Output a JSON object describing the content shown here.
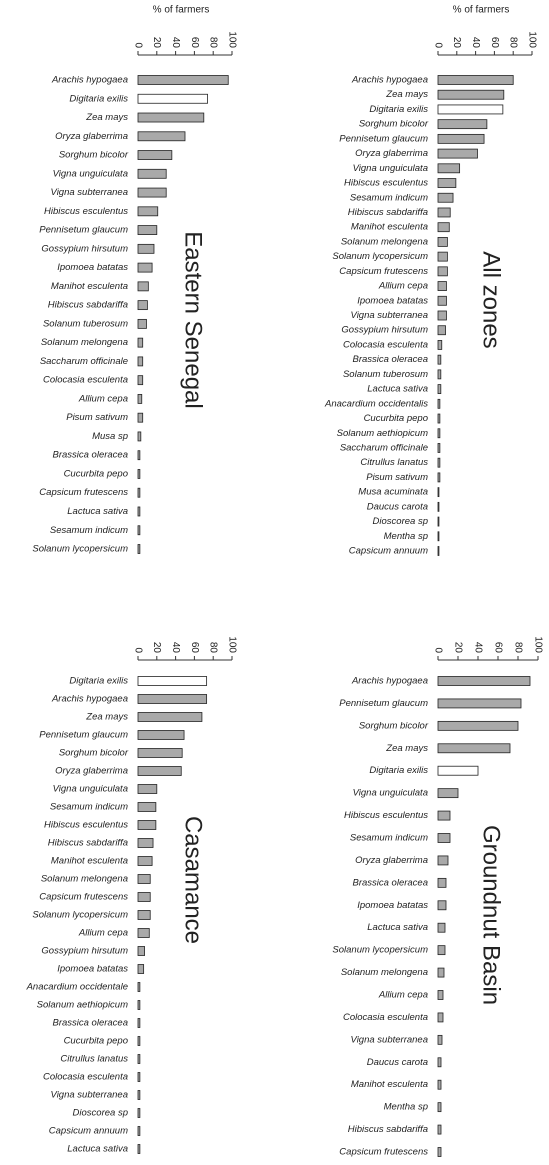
{
  "chart_data": [
    {
      "type": "bar",
      "orientation": "horizontal",
      "title": "Eastern Senegal",
      "xlabel": "% of farmers",
      "categories": [
        "Arachis hypogaea",
        "Digitaria exilis",
        "Zea mays",
        "Oryza glaberrima",
        "Sorghum bicolor",
        "Vigna unguiculata",
        "Vigna subterranea",
        "Hibiscus esculentus",
        "Pennisetum glaucum",
        "Gossypium hirsutum",
        "Ipomoea batatas",
        "Manihot esculenta",
        "Hibiscus sabdariffa",
        "Solanum tuberosum",
        "Solanum melongena",
        "Saccharum officinale",
        "Colocasia esculenta",
        "Allium cepa",
        "Pisum sativum",
        "Musa sp",
        "Brassica oleracea",
        "Cucurbita pepo",
        "Capsicum frutescens",
        "Lactuca sativa",
        "Sesamum indicum",
        "Solanum lycopersicum"
      ],
      "values": [
        96,
        74,
        70,
        50,
        36,
        30,
        30,
        21,
        20,
        17,
        15,
        11,
        10,
        9,
        5,
        5,
        5,
        4,
        5,
        3,
        2,
        2,
        2,
        2,
        2,
        2
      ],
      "colors": [
        "#a9a9a9",
        "#ffffff",
        "#a9a9a9",
        "#a9a9a9",
        "#a9a9a9",
        "#a9a9a9",
        "#a9a9a9",
        "#a9a9a9",
        "#a9a9a9",
        "#a9a9a9",
        "#a9a9a9",
        "#a9a9a9",
        "#a9a9a9",
        "#a9a9a9",
        "#a9a9a9",
        "#a9a9a9",
        "#a9a9a9",
        "#a9a9a9",
        "#a9a9a9",
        "#a9a9a9",
        "#a9a9a9",
        "#a9a9a9",
        "#a9a9a9",
        "#a9a9a9",
        "#a9a9a9",
        "#a9a9a9"
      ],
      "xlim": [
        0,
        100
      ],
      "xticks": [
        0,
        20,
        40,
        60,
        80,
        100
      ]
    },
    {
      "type": "bar",
      "orientation": "horizontal",
      "title": "All zones",
      "xlabel": "% of farmers",
      "categories": [
        "Arachis hypogaea",
        "Zea mays",
        "Digitaria exilis",
        "Sorghum bicolor",
        "Pennisetum glaucum",
        "Oryza glaberrima",
        "Vigna unguiculata",
        "Hibiscus esculentus",
        "Sesamum indicum",
        "Hibiscus sabdariffa",
        "Manihot esculenta",
        "Solanum melongena",
        "Solanum lycopersicum",
        "Capsicum frutescens",
        "Allium cepa",
        "Ipomoea batatas",
        "Vigna subterranea",
        "Gossypium hirsutum",
        "Colocasia esculenta",
        "Brassica oleracea",
        "Solanum tuberosum",
        "Lactuca sativa",
        "Anacardium occidentalis",
        "Cucurbita pepo",
        "Solanum aethiopicum",
        "Saccharum officinale",
        "Citrullus lanatus",
        "Pisum sativum",
        "Musa acuminata",
        "Daucus carota",
        "Dioscorea sp",
        "Mentha sp",
        "Capsicum annuum"
      ],
      "values": [
        80,
        70,
        69,
        52,
        49,
        42,
        23,
        19,
        16,
        13,
        12,
        10,
        10,
        10,
        9,
        9,
        9,
        8,
        4,
        3,
        3,
        3,
        2,
        2,
        2,
        2,
        2,
        2,
        1,
        1,
        1,
        1,
        1
      ],
      "colors": [
        "#a9a9a9",
        "#a9a9a9",
        "#ffffff",
        "#a9a9a9",
        "#a9a9a9",
        "#a9a9a9",
        "#a9a9a9",
        "#a9a9a9",
        "#a9a9a9",
        "#a9a9a9",
        "#a9a9a9",
        "#a9a9a9",
        "#a9a9a9",
        "#a9a9a9",
        "#a9a9a9",
        "#a9a9a9",
        "#a9a9a9",
        "#a9a9a9",
        "#a9a9a9",
        "#a9a9a9",
        "#a9a9a9",
        "#a9a9a9",
        "#a9a9a9",
        "#a9a9a9",
        "#a9a9a9",
        "#a9a9a9",
        "#a9a9a9",
        "#a9a9a9",
        "#a9a9a9",
        "#a9a9a9",
        "#a9a9a9",
        "#a9a9a9",
        "#a9a9a9"
      ],
      "xlim": [
        0,
        100
      ],
      "xticks": [
        0,
        20,
        40,
        60,
        80,
        100
      ]
    },
    {
      "type": "bar",
      "orientation": "horizontal",
      "title": "Casamance",
      "categories": [
        "Digitaria exilis",
        "Arachis hypogaea",
        "Zea mays",
        "Pennisetum glaucum",
        "Sorghum bicolor",
        "Oryza glaberrima",
        "Vigna unguiculata",
        "Sesamum indicum",
        "Hibiscus esculentus",
        "Hibiscus sabdariffa",
        "Manihot esculenta",
        "Solanum melongena",
        "Capsicum frutescens",
        "Solanum lycopersicum",
        "Allium cepa",
        "Gossypium hirsutum",
        "Ipomoea batatas",
        "Anacardium occidentale",
        "Solanum aethiopicum",
        "Brassica oleracea",
        "Cucurbita pepo",
        "Citrullus lanatus",
        "Colocasia esculenta",
        "Vigna subterranea",
        "Dioscorea sp",
        "Capsicum annuum",
        "Lactuca sativa"
      ],
      "values": [
        73,
        73,
        68,
        49,
        47,
        46,
        20,
        19,
        19,
        16,
        15,
        13,
        13,
        13,
        12,
        7,
        6,
        2,
        2,
        2,
        2,
        2,
        2,
        2,
        2,
        2,
        2
      ],
      "colors": [
        "#ffffff",
        "#a9a9a9",
        "#a9a9a9",
        "#a9a9a9",
        "#a9a9a9",
        "#a9a9a9",
        "#a9a9a9",
        "#a9a9a9",
        "#a9a9a9",
        "#a9a9a9",
        "#a9a9a9",
        "#a9a9a9",
        "#a9a9a9",
        "#a9a9a9",
        "#a9a9a9",
        "#a9a9a9",
        "#a9a9a9",
        "#a9a9a9",
        "#a9a9a9",
        "#a9a9a9",
        "#a9a9a9",
        "#a9a9a9",
        "#a9a9a9",
        "#a9a9a9",
        "#a9a9a9",
        "#a9a9a9",
        "#a9a9a9"
      ],
      "xlim": [
        0,
        100
      ],
      "xticks": [
        0,
        20,
        40,
        60,
        80,
        100
      ]
    },
    {
      "type": "bar",
      "orientation": "horizontal",
      "title": "Groundnut Basin",
      "categories": [
        "Arachis hypogaea",
        "Pennisetum glaucum",
        "Sorghum bicolor",
        "Zea mays",
        "Digitaria exilis",
        "Vigna unguiculata",
        "Hibiscus esculentus",
        "Sesamum indicum",
        "Oryza glaberrima",
        "Brassica oleracea",
        "Ipomoea batatas",
        "Lactuca sativa",
        "Solanum lycopersicum",
        "Solanum melongena",
        "Allium cepa",
        "Colocasia esculenta",
        "Vigna subterranea",
        "Daucus carota",
        "Manihot esculenta",
        "Mentha sp",
        "Hibiscus sabdariffa",
        "Capsicum frutescens"
      ],
      "values": [
        92,
        83,
        80,
        72,
        40,
        20,
        12,
        12,
        10,
        8,
        8,
        7,
        7,
        6,
        5,
        5,
        4,
        3,
        3,
        3,
        3,
        3
      ],
      "colors": [
        "#a9a9a9",
        "#a9a9a9",
        "#a9a9a9",
        "#a9a9a9",
        "#ffffff",
        "#a9a9a9",
        "#a9a9a9",
        "#a9a9a9",
        "#a9a9a9",
        "#a9a9a9",
        "#a9a9a9",
        "#a9a9a9",
        "#a9a9a9",
        "#a9a9a9",
        "#a9a9a9",
        "#a9a9a9",
        "#a9a9a9",
        "#a9a9a9",
        "#a9a9a9",
        "#a9a9a9",
        "#a9a9a9",
        "#a9a9a9"
      ],
      "xlim": [
        0,
        100
      ],
      "xticks": [
        0,
        20,
        40,
        60,
        80,
        100
      ]
    }
  ]
}
